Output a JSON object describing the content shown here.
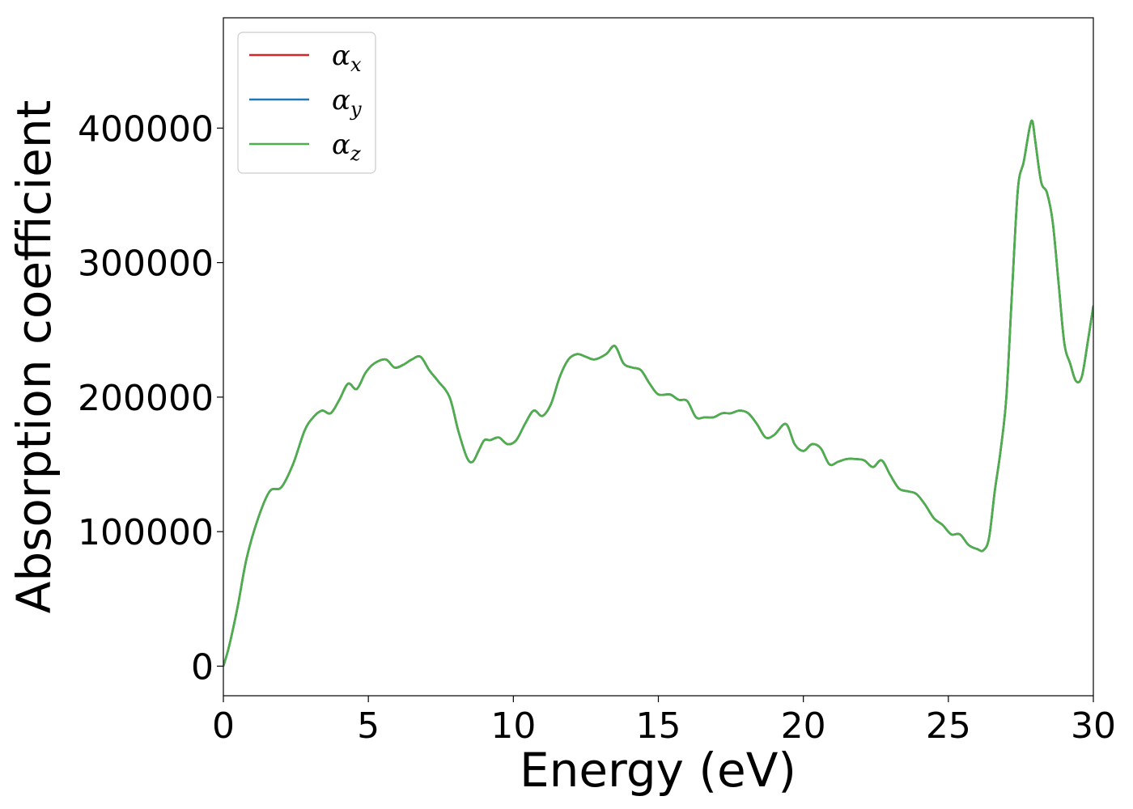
{
  "chart_data": {
    "type": "line",
    "title": "",
    "xlabel": "Energy (eV)",
    "ylabel": "Absorption coefficient",
    "xlim": [
      0,
      30
    ],
    "ylim": [
      -22000,
      482000
    ],
    "xticks": [
      0,
      5,
      10,
      15,
      20,
      25,
      30
    ],
    "xtick_labels": [
      "0",
      "5",
      "10",
      "15",
      "20",
      "25",
      "30"
    ],
    "yticks": [
      0,
      100000,
      200000,
      300000,
      400000
    ],
    "ytick_labels": [
      "0",
      "100000",
      "200000",
      "300000",
      "400000"
    ],
    "grid": false,
    "legend_position": "top-left",
    "x": [
      0,
      0.2,
      0.5,
      0.8,
      1.2,
      1.6,
      2.0,
      2.4,
      2.8,
      3.1,
      3.4,
      3.7,
      4.0,
      4.3,
      4.6,
      4.9,
      5.2,
      5.6,
      5.9,
      6.2,
      6.5,
      6.8,
      7.1,
      7.4,
      7.8,
      8.1,
      8.4,
      8.6,
      8.8,
      9.0,
      9.2,
      9.5,
      9.8,
      10.1,
      10.4,
      10.7,
      11.0,
      11.3,
      11.6,
      11.9,
      12.2,
      12.5,
      12.8,
      13.2,
      13.5,
      13.8,
      14.1,
      14.4,
      14.7,
      15.0,
      15.4,
      15.7,
      16.0,
      16.3,
      16.6,
      16.9,
      17.2,
      17.5,
      17.8,
      18.1,
      18.4,
      18.7,
      19.0,
      19.4,
      19.7,
      20.0,
      20.3,
      20.6,
      20.9,
      21.2,
      21.5,
      21.8,
      22.1,
      22.4,
      22.7,
      23.0,
      23.3,
      23.6,
      23.9,
      24.2,
      24.5,
      24.8,
      25.1,
      25.4,
      25.7,
      26.0,
      26.2,
      26.4,
      26.6,
      26.8,
      27.0,
      27.2,
      27.4,
      27.6,
      27.8,
      27.9,
      28.0,
      28.2,
      28.4,
      28.6,
      28.8,
      29.0,
      29.2,
      29.4,
      29.6,
      29.8,
      30.0
    ],
    "series": [
      {
        "name": "α_x",
        "color": "#d62728",
        "values": [
          0,
          15000,
          45000,
          80000,
          110000,
          130000,
          133000,
          150000,
          175000,
          185000,
          190000,
          188000,
          198000,
          210000,
          206000,
          218000,
          225000,
          228000,
          222000,
          224000,
          228000,
          230000,
          220000,
          212000,
          200000,
          175000,
          155000,
          152000,
          160000,
          168000,
          168000,
          170000,
          165000,
          168000,
          180000,
          190000,
          186000,
          195000,
          215000,
          228000,
          232000,
          230000,
          228000,
          232000,
          238000,
          225000,
          222000,
          220000,
          210000,
          202000,
          202000,
          198000,
          197000,
          185000,
          185000,
          185000,
          188000,
          188000,
          190000,
          188000,
          180000,
          170000,
          172000,
          180000,
          165000,
          160000,
          165000,
          162000,
          150000,
          152000,
          154000,
          154000,
          153000,
          148000,
          153000,
          142000,
          132000,
          130000,
          128000,
          120000,
          110000,
          105000,
          98000,
          98000,
          90000,
          87000,
          86000,
          95000,
          130000,
          160000,
          200000,
          280000,
          355000,
          375000,
          400000,
          405000,
          390000,
          360000,
          352000,
          330000,
          285000,
          240000,
          225000,
          212000,
          215000,
          240000,
          268000
        ]
      },
      {
        "name": "α_y",
        "color": "#1f77b4",
        "values": [
          0,
          15000,
          45000,
          80000,
          110000,
          130000,
          133000,
          150000,
          175000,
          185000,
          190000,
          188000,
          198000,
          210000,
          206000,
          218000,
          225000,
          228000,
          222000,
          224000,
          228000,
          230000,
          220000,
          212000,
          200000,
          175000,
          155000,
          152000,
          160000,
          168000,
          168000,
          170000,
          165000,
          168000,
          180000,
          190000,
          186000,
          195000,
          215000,
          228000,
          232000,
          230000,
          228000,
          232000,
          238000,
          225000,
          222000,
          220000,
          210000,
          202000,
          202000,
          198000,
          197000,
          185000,
          185000,
          185000,
          188000,
          188000,
          190000,
          188000,
          180000,
          170000,
          172000,
          180000,
          165000,
          160000,
          165000,
          162000,
          150000,
          152000,
          154000,
          154000,
          153000,
          148000,
          153000,
          142000,
          132000,
          130000,
          128000,
          120000,
          110000,
          105000,
          98000,
          98000,
          90000,
          87000,
          86000,
          95000,
          130000,
          160000,
          200000,
          280000,
          355000,
          375000,
          400000,
          405000,
          390000,
          360000,
          352000,
          330000,
          285000,
          240000,
          225000,
          212000,
          215000,
          240000,
          268000
        ]
      },
      {
        "name": "α_z",
        "color": "#4daf4a",
        "values": [
          0,
          15000,
          45000,
          80000,
          110000,
          130000,
          133000,
          150000,
          175000,
          185000,
          190000,
          188000,
          198000,
          210000,
          206000,
          218000,
          225000,
          228000,
          222000,
          224000,
          228000,
          230000,
          220000,
          212000,
          200000,
          175000,
          155000,
          152000,
          160000,
          168000,
          168000,
          170000,
          165000,
          168000,
          180000,
          190000,
          186000,
          195000,
          215000,
          228000,
          232000,
          230000,
          228000,
          232000,
          238000,
          225000,
          222000,
          220000,
          210000,
          202000,
          202000,
          198000,
          197000,
          185000,
          185000,
          185000,
          188000,
          188000,
          190000,
          188000,
          180000,
          170000,
          172000,
          180000,
          165000,
          160000,
          165000,
          162000,
          150000,
          152000,
          154000,
          154000,
          153000,
          148000,
          153000,
          142000,
          132000,
          130000,
          128000,
          120000,
          110000,
          105000,
          98000,
          98000,
          90000,
          87000,
          86000,
          95000,
          130000,
          160000,
          200000,
          280000,
          355000,
          375000,
          400000,
          405000,
          390000,
          360000,
          352000,
          330000,
          285000,
          240000,
          225000,
          212000,
          215000,
          240000,
          268000
        ]
      }
    ],
    "legend": [
      {
        "base": "α",
        "sub": "x",
        "color": "#d62728"
      },
      {
        "base": "α",
        "sub": "y",
        "color": "#1f77b4"
      },
      {
        "base": "α",
        "sub": "z",
        "color": "#4daf4a"
      }
    ]
  }
}
